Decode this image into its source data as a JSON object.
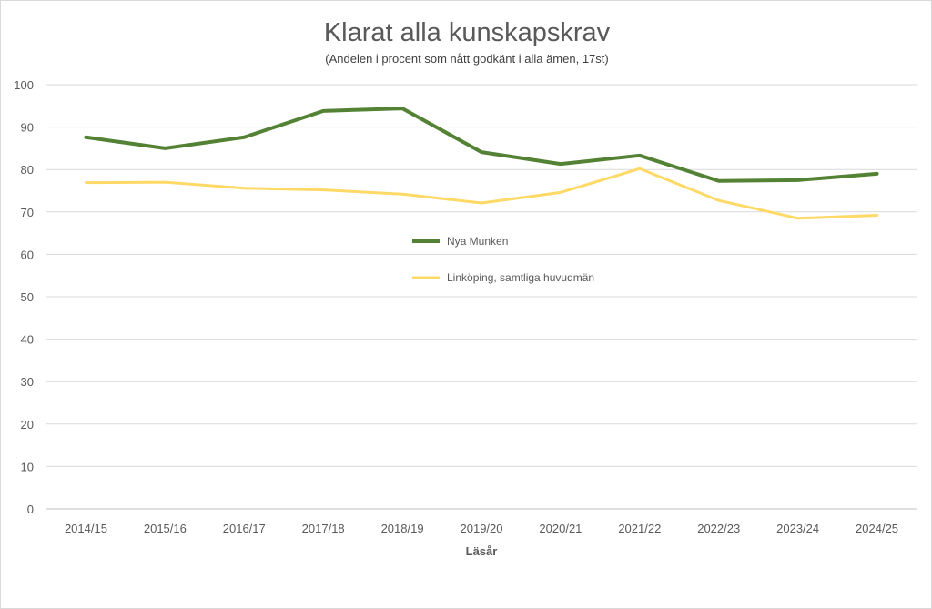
{
  "chart_data": {
    "type": "line",
    "title": "Klarat alla kunskapskrav",
    "subtitle": "(Andelen i procent som nått godkänt i alla ämen, 17st)",
    "xlabel": "Läsår",
    "ylabel": "",
    "ylim": [
      0,
      100
    ],
    "yticks": [
      0,
      10,
      20,
      30,
      40,
      50,
      60,
      70,
      80,
      90,
      100
    ],
    "grid": true,
    "legend_position": "center",
    "categories": [
      "2014/15",
      "2015/16",
      "2016/17",
      "2017/18",
      "2018/19",
      "2019/20",
      "2020/21",
      "2021/22",
      "2022/23",
      "2023/24",
      "2024/25"
    ],
    "series": [
      {
        "name": "Nya Munken",
        "color": "#548235",
        "values": [
          87.6,
          85.0,
          87.6,
          93.8,
          94.4,
          84.1,
          81.3,
          83.3,
          77.3,
          77.5,
          79.0
        ]
      },
      {
        "name": "Linköping, samtliga huvudmän",
        "color": "#ffd966",
        "values": [
          76.9,
          77.0,
          75.6,
          75.2,
          74.2,
          72.1,
          74.6,
          80.2,
          72.7,
          68.5,
          69.2
        ]
      }
    ]
  }
}
